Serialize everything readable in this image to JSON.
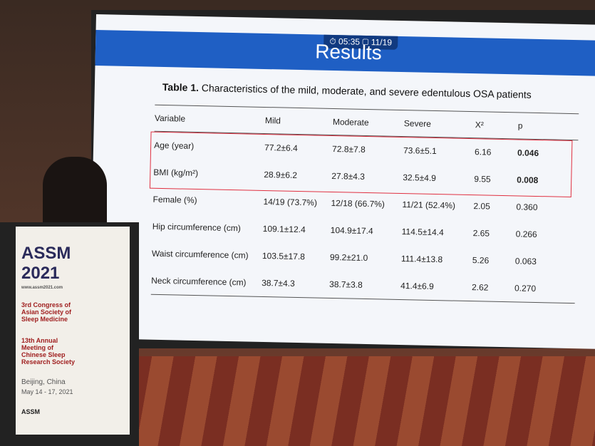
{
  "slide": {
    "timer": "05:35",
    "page": "11/19",
    "title": "Results"
  },
  "table": {
    "label": "Table 1.",
    "caption": "Characteristics of the mild, moderate, and severe edentulous OSA patients",
    "header": [
      "Variable",
      "Mild",
      "Moderate",
      "Severe",
      "X²",
      "p"
    ],
    "rows": [
      [
        "Age (year)",
        "77.2±6.4",
        "72.8±7.8",
        "73.6±5.1",
        "6.16",
        "0.046"
      ],
      [
        "BMI (kg/m²)",
        "28.9±6.2",
        "27.8±4.3",
        "32.5±4.9",
        "9.55",
        "0.008"
      ],
      [
        "Female (%)",
        "14/19 (73.7%)",
        "12/18 (66.7%)",
        "11/21 (52.4%)",
        "2.05",
        "0.360"
      ],
      [
        "Hip circumference (cm)",
        "109.1±12.4",
        "104.9±17.4",
        "114.5±14.4",
        "2.65",
        "0.266"
      ],
      [
        "Waist circumference (cm)",
        "103.5±17.8",
        "99.2±21.0",
        "111.4±13.8",
        "5.26",
        "0.063"
      ],
      [
        "Neck circumference (cm)",
        "38.7±4.3",
        "38.7±3.8",
        "41.4±6.9",
        "2.62",
        "0.270"
      ]
    ]
  },
  "banner": {
    "name": "ASSM",
    "year": "2021",
    "url": "www.assm2021.com",
    "congress": "3rd Congress of Asian Society of Sleep Medicine",
    "meeting": "13th Annual Meeting of Chinese Sleep Research Society",
    "city": "Beijing, China",
    "dates": "May 14 - 17, 2021",
    "logo": "ASSM"
  }
}
